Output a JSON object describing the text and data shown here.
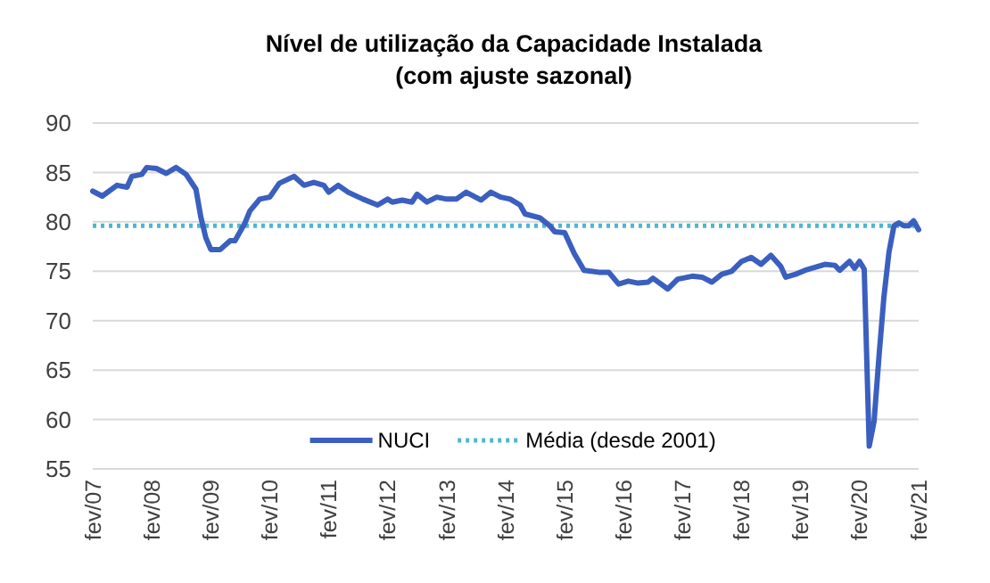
{
  "chart_data": {
    "type": "line",
    "title": "Nível de utilização da Capacidade Instalada",
    "subtitle": "(com ajuste sazonal)",
    "xlim": [
      "2007-02",
      "2021-02"
    ],
    "xticks": [
      {
        "value": "2007-02",
        "label": "fev/07"
      },
      {
        "value": "2008-02",
        "label": "fev/08"
      },
      {
        "value": "2009-02",
        "label": "fev/09"
      },
      {
        "value": "2010-02",
        "label": "fev/10"
      },
      {
        "value": "2011-02",
        "label": "fev/11"
      },
      {
        "value": "2012-02",
        "label": "fev/12"
      },
      {
        "value": "2013-02",
        "label": "fev/13"
      },
      {
        "value": "2014-02",
        "label": "fev/14"
      },
      {
        "value": "2015-02",
        "label": "fev/15"
      },
      {
        "value": "2016-02",
        "label": "fev/16"
      },
      {
        "value": "2017-02",
        "label": "fev/17"
      },
      {
        "value": "2018-02",
        "label": "fev/18"
      },
      {
        "value": "2019-02",
        "label": "fev/19"
      },
      {
        "value": "2020-02",
        "label": "fev/20"
      },
      {
        "value": "2021-02",
        "label": "fev/21"
      }
    ],
    "ylim": [
      55,
      90
    ],
    "yticks": [
      55,
      60,
      65,
      70,
      75,
      80,
      85,
      90
    ],
    "grid": "y",
    "legend": "bottom",
    "line_style": "solid",
    "marker": "none",
    "series": [
      {
        "name": "NUCI",
        "color": "#3a5fbf",
        "x": [
          "2007-02",
          "2007-04",
          "2007-07",
          "2007-09",
          "2007-10",
          "2007-12",
          "2008-01",
          "2008-03",
          "2008-05",
          "2008-07",
          "2008-09",
          "2008-11",
          "2008-12",
          "2009-01",
          "2009-02",
          "2009-04",
          "2009-06",
          "2009-07",
          "2009-09",
          "2009-10",
          "2009-12",
          "2010-02",
          "2010-04",
          "2010-07",
          "2010-09",
          "2010-11",
          "2011-01",
          "2011-02",
          "2011-04",
          "2011-06",
          "2011-09",
          "2011-12",
          "2012-02",
          "2012-03",
          "2012-05",
          "2012-07",
          "2012-08",
          "2012-10",
          "2012-12",
          "2013-02",
          "2013-04",
          "2013-06",
          "2013-09",
          "2013-11",
          "2014-01",
          "2014-03",
          "2014-05",
          "2014-06",
          "2014-09",
          "2014-11",
          "2014-12",
          "2015-02",
          "2015-04",
          "2015-06",
          "2015-09",
          "2015-11",
          "2016-01",
          "2016-03",
          "2016-05",
          "2016-07",
          "2016-08",
          "2016-11",
          "2017-01",
          "2017-04",
          "2017-06",
          "2017-08",
          "2017-10",
          "2017-12",
          "2018-02",
          "2018-04",
          "2018-06",
          "2018-08",
          "2018-10",
          "2018-11",
          "2019-01",
          "2019-03",
          "2019-05",
          "2019-07",
          "2019-09",
          "2019-10",
          "2019-12",
          "2020-01",
          "2020-02",
          "2020-03",
          "2020-04",
          "2020-05",
          "2020-06",
          "2020-07",
          "2020-08",
          "2020-09",
          "2020-10",
          "2020-11",
          "2020-12",
          "2021-01",
          "2021-02"
        ],
        "values": [
          83.1,
          82.6,
          83.7,
          83.5,
          84.6,
          84.8,
          85.5,
          85.4,
          84.9,
          85.5,
          84.8,
          83.3,
          80.5,
          78.4,
          77.2,
          77.2,
          78.1,
          78.1,
          79.9,
          81.1,
          82.3,
          82.5,
          83.9,
          84.6,
          83.7,
          84.0,
          83.7,
          83.0,
          83.7,
          83.0,
          82.3,
          81.7,
          82.3,
          82.0,
          82.2,
          82.0,
          82.8,
          82.0,
          82.5,
          82.3,
          82.3,
          83.0,
          82.2,
          83.0,
          82.5,
          82.3,
          81.7,
          80.8,
          80.4,
          79.6,
          79.0,
          78.9,
          76.8,
          75.1,
          74.9,
          74.9,
          73.7,
          74.0,
          73.8,
          73.9,
          74.3,
          73.2,
          74.2,
          74.5,
          74.4,
          73.9,
          74.7,
          75.0,
          76.0,
          76.4,
          75.7,
          76.6,
          75.5,
          74.4,
          74.7,
          75.1,
          75.4,
          75.7,
          75.6,
          75.1,
          76.0,
          75.3,
          76.0,
          75.2,
          57.3,
          59.8,
          66.5,
          72.4,
          76.9,
          79.6,
          79.9,
          79.6,
          79.6,
          80.1,
          79.2
        ]
      }
    ],
    "ref_lines": [
      {
        "axis": "y",
        "value": 79.6,
        "label": "Média (desde 2001)",
        "color": "#4bb8d0",
        "line_style": "dotted"
      }
    ]
  }
}
